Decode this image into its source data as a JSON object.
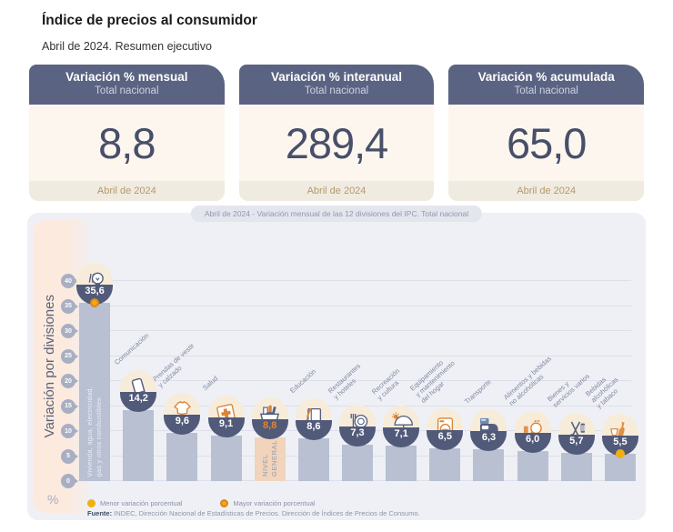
{
  "page": {
    "title": "Índice de precios al consumidor",
    "subtitle": "Abril de 2024. Resumen ejecutivo"
  },
  "cards": [
    {
      "title": "Variación % mensual",
      "subtitle": "Total nacional",
      "value": "8,8",
      "period": "Abril de 2024"
    },
    {
      "title": "Variación % interanual",
      "subtitle": "Total nacional",
      "value": "289,4",
      "period": "Abril de 2024"
    },
    {
      "title": "Variación % acumulada",
      "subtitle": "Total nacional",
      "value": "65,0",
      "period": "Abril de 2024"
    }
  ],
  "chart_data": {
    "type": "bar",
    "title": "Abril de 2024 - Variación mensual de las 12 divisiones del IPC. Total nacional",
    "ylabel": "Variación por divisiones",
    "unit_label": "%",
    "ylim": [
      0,
      40
    ],
    "yticks": [
      0,
      5,
      10,
      15,
      20,
      25,
      30,
      35,
      40
    ],
    "grid": true,
    "categories": [
      "Vivienda, agua, electricidad, gas y otros combustibles",
      "Comunicación",
      "Prendas de vestir y calzado",
      "Salud",
      "Nivel general",
      "Educación",
      "Restaurantes y hoteles",
      "Recreación y cultura",
      "Equipamiento y mantenimiento del hogar",
      "Transporte",
      "Alimentos y bebidas no alcohólicas",
      "Bienes y servicios varios",
      "Bebidas alcohólicas y tabaco"
    ],
    "values": [
      35.6,
      14.2,
      9.6,
      9.1,
      8.8,
      8.6,
      7.3,
      7.1,
      6.5,
      6.3,
      6.0,
      5.7,
      5.5
    ],
    "bars": [
      {
        "category": "Vivienda, agua, electricidad, gas y otros combustibles",
        "value": 35.6,
        "display": "35,6",
        "icon": "housing-utilities-icon",
        "label_style": "inside",
        "label_lines": "Vivienda, agua, electricidad,\ngas y otros combustibles",
        "marker": "mayor"
      },
      {
        "category": "Comunicación",
        "value": 14.2,
        "display": "14,2",
        "icon": "communication-icon",
        "label_lines": "Comunicación"
      },
      {
        "category": "Prendas de vestir y calzado",
        "value": 9.6,
        "display": "9,6",
        "icon": "clothing-icon",
        "label_lines": "Prendas de vestir\ny calzado"
      },
      {
        "category": "Salud",
        "value": 9.1,
        "display": "9,1",
        "icon": "health-icon",
        "label_lines": "Salud"
      },
      {
        "category": "Nivel general",
        "value": 8.8,
        "display": "8,8",
        "icon": "general-basket-icon",
        "label_style": "none",
        "bar_text": "NIVEL\nGENERAL",
        "highlight": true
      },
      {
        "category": "Educación",
        "value": 8.6,
        "display": "8,6",
        "icon": "education-icon",
        "label_lines": "Educación"
      },
      {
        "category": "Restaurantes y hoteles",
        "value": 7.3,
        "display": "7,3",
        "icon": "restaurants-icon",
        "label_lines": "Restaurantes\ny hoteles"
      },
      {
        "category": "Recreación y cultura",
        "value": 7.1,
        "display": "7,1",
        "icon": "recreation-icon",
        "label_lines": "Recreación\ny cultura"
      },
      {
        "category": "Equipamiento y mantenimiento del hogar",
        "value": 6.5,
        "display": "6,5",
        "icon": "household-equipment-icon",
        "label_lines": "Equipamiento\ny mantenimiento\ndel hogar"
      },
      {
        "category": "Transporte",
        "value": 6.3,
        "display": "6,3",
        "icon": "transport-icon",
        "label_lines": "Transporte"
      },
      {
        "category": "Alimentos y bebidas no alcohólicas",
        "value": 6.0,
        "display": "6,0",
        "icon": "food-icon",
        "label_lines": "Alimentos y bebidas\nno alcohólicas"
      },
      {
        "category": "Bienes y servicios varios",
        "value": 5.7,
        "display": "5,7",
        "icon": "goods-services-icon",
        "label_lines": "Bienes y\nservicios varios"
      },
      {
        "category": "Bebidas alcohólicas y tabaco",
        "value": 5.5,
        "display": "5,5",
        "icon": "alcohol-tobacco-icon",
        "label_lines": "Bebidas\nalcohólicas\ny tabaco",
        "marker": "menor"
      }
    ],
    "legend": [
      {
        "label": "Menor variación porcentual",
        "marker": "menor"
      },
      {
        "label": "Mayor variación porcentual",
        "marker": "mayor"
      }
    ],
    "source_prefix": "Fuente:",
    "source": " INDEC, Dirección Nacional de Estadísticas de Precios. Dirección de Índices de Precios de Consumo.",
    "legend_position": "bottom-left"
  },
  "colors": {
    "navy_header": "#5a6382",
    "navy_dark": "#474f69",
    "badge_navy": "#515a79",
    "accent_navy": "#545e80",
    "accent_orange": "#dc8434",
    "bar": "#b8c0d2",
    "bar_highlight": "#f1d4bb",
    "value_highlight": "#e0862e",
    "dot_menor": "#efb011",
    "dot_mayor": "#f2a814",
    "dot_mayor_ring": "#db861d",
    "cream": "#fdf6ee",
    "panel": "#eef0f5"
  }
}
